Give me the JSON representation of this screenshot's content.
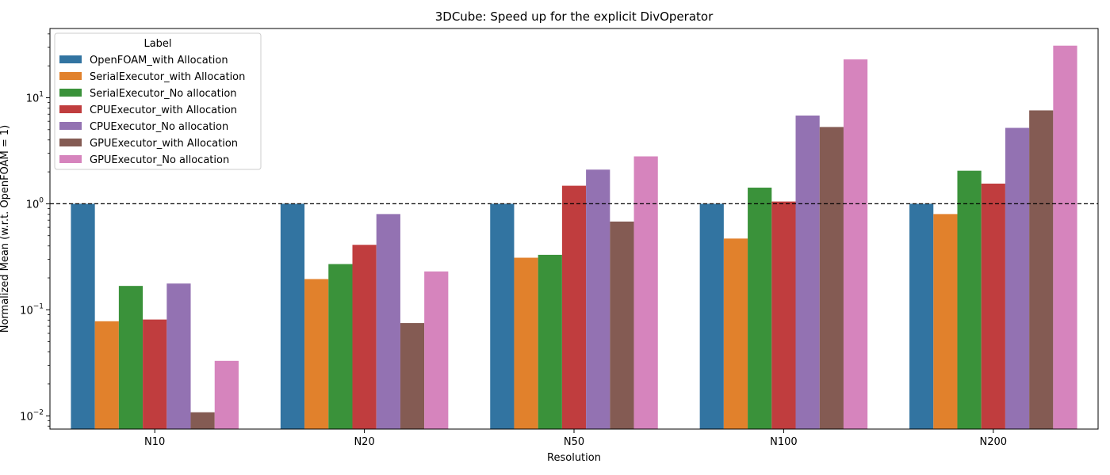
{
  "chart_data": {
    "type": "bar",
    "title": "3DCube: Speed up for the explicit DivOperator",
    "xlabel": "Resolution",
    "ylabel": "Normalized Mean (w.r.t. OpenFOAM = 1)",
    "yscale": "log",
    "ylim": [
      0.0075,
      45
    ],
    "yticks": [
      {
        "value": 0.01,
        "base": "10",
        "exp": "−2"
      },
      {
        "value": 0.1,
        "base": "10",
        "exp": "−1"
      },
      {
        "value": 1,
        "base": "10",
        "exp": "0"
      },
      {
        "value": 10,
        "base": "10",
        "exp": "1"
      }
    ],
    "reference_line": {
      "value": 1,
      "style": "dashed"
    },
    "categories": [
      "N10",
      "N20",
      "N50",
      "N100",
      "N200"
    ],
    "legend": {
      "title": "Label",
      "placement": "upper-left"
    },
    "series": [
      {
        "name": "OpenFOAM_with Allocation",
        "color": "#3274a1",
        "values": [
          1.0,
          1.0,
          1.0,
          1.0,
          1.0
        ]
      },
      {
        "name": "SerialExecutor_with Allocation",
        "color": "#e1812c",
        "values": [
          0.078,
          0.195,
          0.31,
          0.47,
          0.8
        ]
      },
      {
        "name": "SerialExecutor_No allocation",
        "color": "#3a923a",
        "values": [
          0.168,
          0.27,
          0.33,
          1.42,
          2.05
        ]
      },
      {
        "name": "CPUExecutor_with Allocation",
        "color": "#c03d3e",
        "values": [
          0.081,
          0.41,
          1.48,
          1.05,
          1.55
        ]
      },
      {
        "name": "CPUExecutor_No allocation",
        "color": "#9372b2",
        "values": [
          0.177,
          0.8,
          2.1,
          6.8,
          5.2
        ]
      },
      {
        "name": "GPUExecutor_with Allocation",
        "color": "#845b53",
        "values": [
          0.0108,
          0.075,
          0.68,
          5.3,
          7.6
        ]
      },
      {
        "name": "GPUExecutor_No allocation",
        "color": "#d684bd",
        "values": [
          0.033,
          0.23,
          2.8,
          23.0,
          31.0
        ]
      }
    ]
  }
}
